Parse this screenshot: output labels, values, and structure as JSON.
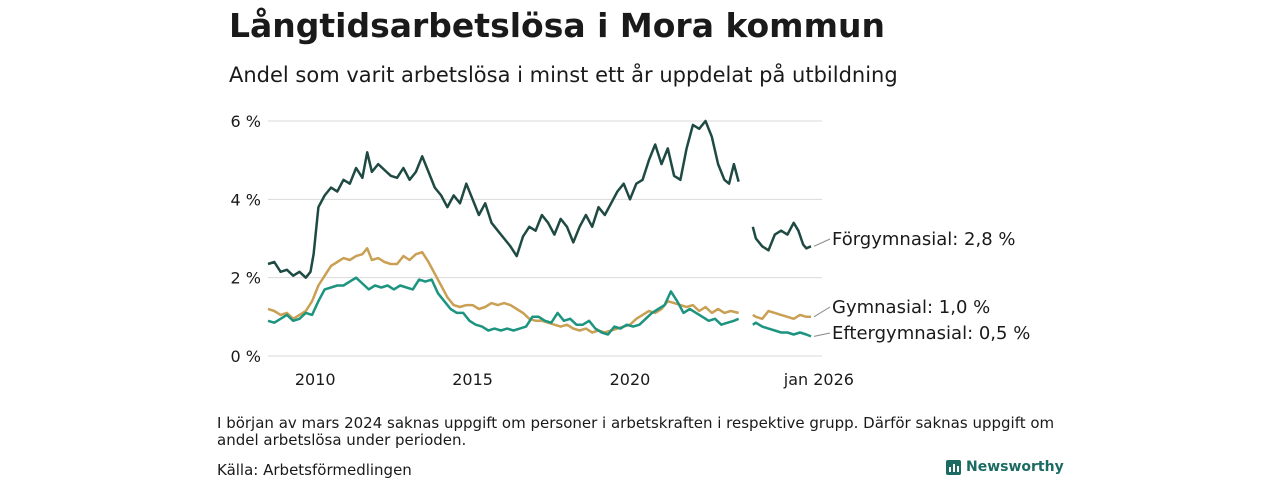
{
  "title": "Långtidsarbetslösa i Mora kommun",
  "subtitle": "Andel som varit arbetslösa i minst ett år uppdelat på utbildning",
  "note": "I början av mars 2024 saknas uppgift om personer i arbetskraften i respektive grupp. Därför saknas uppgift om andel arbetslösa under perioden.",
  "source": "Källa: Arbetsförmedlingen",
  "brand": "Newsworthy",
  "colors": {
    "forgymnasial": "#1f4a43",
    "gymnasial": "#c9a054",
    "eftergymnasial": "#1c9480",
    "grid": "#d9d9d9",
    "text": "#1a1a1a"
  },
  "chart_data": {
    "type": "line",
    "title": "Långtidsarbetslösa i Mora kommun",
    "xlabel": "",
    "ylabel": "",
    "x_range": [
      2008.5,
      2026.1
    ],
    "ylim": [
      0,
      6
    ],
    "y_ticks": [
      0,
      2,
      4,
      6
    ],
    "y_tick_labels": [
      "0 %",
      "2 %",
      "4 %",
      "6 %"
    ],
    "x_ticks": [
      2010,
      2015,
      2020,
      2026
    ],
    "x_tick_labels": [
      "2010",
      "2015",
      "2020",
      "jan 2026"
    ],
    "grid": true,
    "series": [
      {
        "name": "Förgymnasial",
        "end_label": "Förgymnasial: 2,8 %",
        "points": [
          [
            2008.5,
            2.35
          ],
          [
            2008.7,
            2.4
          ],
          [
            2008.9,
            2.15
          ],
          [
            2009.1,
            2.2
          ],
          [
            2009.3,
            2.05
          ],
          [
            2009.5,
            2.15
          ],
          [
            2009.7,
            2.0
          ],
          [
            2009.85,
            2.15
          ],
          [
            2009.95,
            2.6
          ],
          [
            2010.1,
            3.8
          ],
          [
            2010.3,
            4.1
          ],
          [
            2010.5,
            4.3
          ],
          [
            2010.7,
            4.2
          ],
          [
            2010.9,
            4.5
          ],
          [
            2011.1,
            4.4
          ],
          [
            2011.3,
            4.8
          ],
          [
            2011.5,
            4.55
          ],
          [
            2011.65,
            5.2
          ],
          [
            2011.8,
            4.7
          ],
          [
            2012.0,
            4.9
          ],
          [
            2012.2,
            4.75
          ],
          [
            2012.4,
            4.6
          ],
          [
            2012.6,
            4.55
          ],
          [
            2012.8,
            4.8
          ],
          [
            2013.0,
            4.5
          ],
          [
            2013.2,
            4.7
          ],
          [
            2013.4,
            5.1
          ],
          [
            2013.6,
            4.7
          ],
          [
            2013.8,
            4.3
          ],
          [
            2014.0,
            4.1
          ],
          [
            2014.2,
            3.8
          ],
          [
            2014.4,
            4.1
          ],
          [
            2014.6,
            3.9
          ],
          [
            2014.8,
            4.4
          ],
          [
            2015.0,
            4.0
          ],
          [
            2015.2,
            3.6
          ],
          [
            2015.4,
            3.9
          ],
          [
            2015.6,
            3.4
          ],
          [
            2015.8,
            3.2
          ],
          [
            2016.0,
            3.0
          ],
          [
            2016.2,
            2.8
          ],
          [
            2016.4,
            2.55
          ],
          [
            2016.6,
            3.05
          ],
          [
            2016.8,
            3.3
          ],
          [
            2017.0,
            3.2
          ],
          [
            2017.2,
            3.6
          ],
          [
            2017.4,
            3.4
          ],
          [
            2017.6,
            3.1
          ],
          [
            2017.8,
            3.5
          ],
          [
            2018.0,
            3.3
          ],
          [
            2018.2,
            2.9
          ],
          [
            2018.4,
            3.3
          ],
          [
            2018.6,
            3.6
          ],
          [
            2018.8,
            3.3
          ],
          [
            2019.0,
            3.8
          ],
          [
            2019.2,
            3.6
          ],
          [
            2019.4,
            3.9
          ],
          [
            2019.6,
            4.2
          ],
          [
            2019.8,
            4.4
          ],
          [
            2020.0,
            4.0
          ],
          [
            2020.2,
            4.4
          ],
          [
            2020.4,
            4.5
          ],
          [
            2020.6,
            5.0
          ],
          [
            2020.8,
            5.4
          ],
          [
            2021.0,
            4.9
          ],
          [
            2021.2,
            5.3
          ],
          [
            2021.4,
            4.6
          ],
          [
            2021.6,
            4.5
          ],
          [
            2021.8,
            5.3
          ],
          [
            2022.0,
            5.9
          ],
          [
            2022.2,
            5.8
          ],
          [
            2022.4,
            6.0
          ],
          [
            2022.6,
            5.6
          ],
          [
            2022.8,
            4.9
          ],
          [
            2023.0,
            4.5
          ],
          [
            2023.15,
            4.4
          ],
          [
            2023.3,
            4.9
          ],
          [
            2023.45,
            4.45
          ],
          [
            null,
            null
          ],
          [
            2023.9,
            3.3
          ],
          [
            2024.0,
            3.0
          ],
          [
            2024.2,
            2.8
          ],
          [
            2024.4,
            2.7
          ],
          [
            2024.6,
            3.1
          ],
          [
            2024.8,
            3.2
          ],
          [
            2025.0,
            3.1
          ],
          [
            2025.2,
            3.4
          ],
          [
            2025.35,
            3.2
          ],
          [
            2025.5,
            2.85
          ],
          [
            2025.6,
            2.75
          ],
          [
            2025.75,
            2.8
          ]
        ]
      },
      {
        "name": "Gymnasial",
        "end_label": "Gymnasial: 1,0 %",
        "points": [
          [
            2008.5,
            1.2
          ],
          [
            2008.7,
            1.15
          ],
          [
            2008.9,
            1.05
          ],
          [
            2009.1,
            1.1
          ],
          [
            2009.3,
            0.95
          ],
          [
            2009.5,
            1.05
          ],
          [
            2009.7,
            1.15
          ],
          [
            2009.9,
            1.4
          ],
          [
            2010.1,
            1.8
          ],
          [
            2010.3,
            2.05
          ],
          [
            2010.5,
            2.3
          ],
          [
            2010.7,
            2.4
          ],
          [
            2010.9,
            2.5
          ],
          [
            2011.1,
            2.45
          ],
          [
            2011.3,
            2.55
          ],
          [
            2011.5,
            2.6
          ],
          [
            2011.65,
            2.75
          ],
          [
            2011.8,
            2.45
          ],
          [
            2012.0,
            2.5
          ],
          [
            2012.2,
            2.4
          ],
          [
            2012.4,
            2.35
          ],
          [
            2012.6,
            2.35
          ],
          [
            2012.8,
            2.55
          ],
          [
            2013.0,
            2.45
          ],
          [
            2013.2,
            2.6
          ],
          [
            2013.4,
            2.65
          ],
          [
            2013.6,
            2.4
          ],
          [
            2013.8,
            2.1
          ],
          [
            2014.0,
            1.8
          ],
          [
            2014.2,
            1.5
          ],
          [
            2014.4,
            1.3
          ],
          [
            2014.6,
            1.25
          ],
          [
            2014.8,
            1.3
          ],
          [
            2015.0,
            1.3
          ],
          [
            2015.2,
            1.2
          ],
          [
            2015.4,
            1.25
          ],
          [
            2015.6,
            1.35
          ],
          [
            2015.8,
            1.3
          ],
          [
            2016.0,
            1.35
          ],
          [
            2016.2,
            1.3
          ],
          [
            2016.4,
            1.2
          ],
          [
            2016.6,
            1.1
          ],
          [
            2016.8,
            0.95
          ],
          [
            2017.0,
            0.9
          ],
          [
            2017.2,
            0.9
          ],
          [
            2017.4,
            0.85
          ],
          [
            2017.6,
            0.8
          ],
          [
            2017.8,
            0.75
          ],
          [
            2018.0,
            0.8
          ],
          [
            2018.2,
            0.7
          ],
          [
            2018.4,
            0.65
          ],
          [
            2018.6,
            0.7
          ],
          [
            2018.8,
            0.6
          ],
          [
            2019.0,
            0.65
          ],
          [
            2019.2,
            0.6
          ],
          [
            2019.4,
            0.65
          ],
          [
            2019.6,
            0.7
          ],
          [
            2019.8,
            0.75
          ],
          [
            2020.0,
            0.8
          ],
          [
            2020.2,
            0.95
          ],
          [
            2020.4,
            1.05
          ],
          [
            2020.6,
            1.15
          ],
          [
            2020.8,
            1.1
          ],
          [
            2021.0,
            1.2
          ],
          [
            2021.2,
            1.4
          ],
          [
            2021.4,
            1.35
          ],
          [
            2021.6,
            1.3
          ],
          [
            2021.8,
            1.25
          ],
          [
            2022.0,
            1.3
          ],
          [
            2022.2,
            1.15
          ],
          [
            2022.4,
            1.25
          ],
          [
            2022.6,
            1.1
          ],
          [
            2022.8,
            1.2
          ],
          [
            2023.0,
            1.1
          ],
          [
            2023.2,
            1.15
          ],
          [
            2023.45,
            1.1
          ],
          [
            null,
            null
          ],
          [
            2023.9,
            1.05
          ],
          [
            2024.0,
            1.0
          ],
          [
            2024.2,
            0.95
          ],
          [
            2024.4,
            1.15
          ],
          [
            2024.6,
            1.1
          ],
          [
            2024.8,
            1.05
          ],
          [
            2025.0,
            1.0
          ],
          [
            2025.2,
            0.95
          ],
          [
            2025.4,
            1.05
          ],
          [
            2025.6,
            1.0
          ],
          [
            2025.75,
            1.0
          ]
        ]
      },
      {
        "name": "Eftergymnasial",
        "end_label": "Eftergymnasial: 0,5 %",
        "points": [
          [
            2008.5,
            0.9
          ],
          [
            2008.7,
            0.85
          ],
          [
            2008.9,
            0.95
          ],
          [
            2009.1,
            1.05
          ],
          [
            2009.3,
            0.9
          ],
          [
            2009.5,
            0.95
          ],
          [
            2009.7,
            1.1
          ],
          [
            2009.9,
            1.05
          ],
          [
            2010.1,
            1.4
          ],
          [
            2010.3,
            1.7
          ],
          [
            2010.5,
            1.75
          ],
          [
            2010.7,
            1.8
          ],
          [
            2010.9,
            1.8
          ],
          [
            2011.1,
            1.9
          ],
          [
            2011.3,
            2.0
          ],
          [
            2011.5,
            1.85
          ],
          [
            2011.7,
            1.7
          ],
          [
            2011.9,
            1.8
          ],
          [
            2012.1,
            1.75
          ],
          [
            2012.3,
            1.8
          ],
          [
            2012.5,
            1.7
          ],
          [
            2012.7,
            1.8
          ],
          [
            2012.9,
            1.75
          ],
          [
            2013.1,
            1.7
          ],
          [
            2013.3,
            1.95
          ],
          [
            2013.5,
            1.9
          ],
          [
            2013.7,
            1.95
          ],
          [
            2013.9,
            1.6
          ],
          [
            2014.1,
            1.4
          ],
          [
            2014.3,
            1.2
          ],
          [
            2014.5,
            1.1
          ],
          [
            2014.7,
            1.1
          ],
          [
            2014.9,
            0.9
          ],
          [
            2015.1,
            0.8
          ],
          [
            2015.3,
            0.75
          ],
          [
            2015.5,
            0.65
          ],
          [
            2015.7,
            0.7
          ],
          [
            2015.9,
            0.65
          ],
          [
            2016.1,
            0.7
          ],
          [
            2016.3,
            0.65
          ],
          [
            2016.5,
            0.7
          ],
          [
            2016.7,
            0.75
          ],
          [
            2016.9,
            1.0
          ],
          [
            2017.1,
            1.0
          ],
          [
            2017.3,
            0.9
          ],
          [
            2017.5,
            0.85
          ],
          [
            2017.7,
            1.1
          ],
          [
            2017.9,
            0.9
          ],
          [
            2018.1,
            0.95
          ],
          [
            2018.3,
            0.8
          ],
          [
            2018.5,
            0.8
          ],
          [
            2018.7,
            0.9
          ],
          [
            2018.9,
            0.7
          ],
          [
            2019.1,
            0.6
          ],
          [
            2019.3,
            0.55
          ],
          [
            2019.5,
            0.75
          ],
          [
            2019.7,
            0.7
          ],
          [
            2019.9,
            0.8
          ],
          [
            2020.1,
            0.75
          ],
          [
            2020.3,
            0.8
          ],
          [
            2020.5,
            0.95
          ],
          [
            2020.7,
            1.1
          ],
          [
            2020.9,
            1.2
          ],
          [
            2021.1,
            1.3
          ],
          [
            2021.3,
            1.65
          ],
          [
            2021.5,
            1.4
          ],
          [
            2021.7,
            1.1
          ],
          [
            2021.9,
            1.2
          ],
          [
            2022.1,
            1.1
          ],
          [
            2022.3,
            1.0
          ],
          [
            2022.5,
            0.9
          ],
          [
            2022.7,
            0.95
          ],
          [
            2022.9,
            0.8
          ],
          [
            2023.1,
            0.85
          ],
          [
            2023.3,
            0.9
          ],
          [
            2023.45,
            0.95
          ],
          [
            null,
            null
          ],
          [
            2023.9,
            0.8
          ],
          [
            2024.0,
            0.85
          ],
          [
            2024.2,
            0.75
          ],
          [
            2024.4,
            0.7
          ],
          [
            2024.6,
            0.65
          ],
          [
            2024.8,
            0.6
          ],
          [
            2025.0,
            0.6
          ],
          [
            2025.2,
            0.55
          ],
          [
            2025.4,
            0.6
          ],
          [
            2025.6,
            0.55
          ],
          [
            2025.75,
            0.5
          ]
        ]
      }
    ]
  }
}
